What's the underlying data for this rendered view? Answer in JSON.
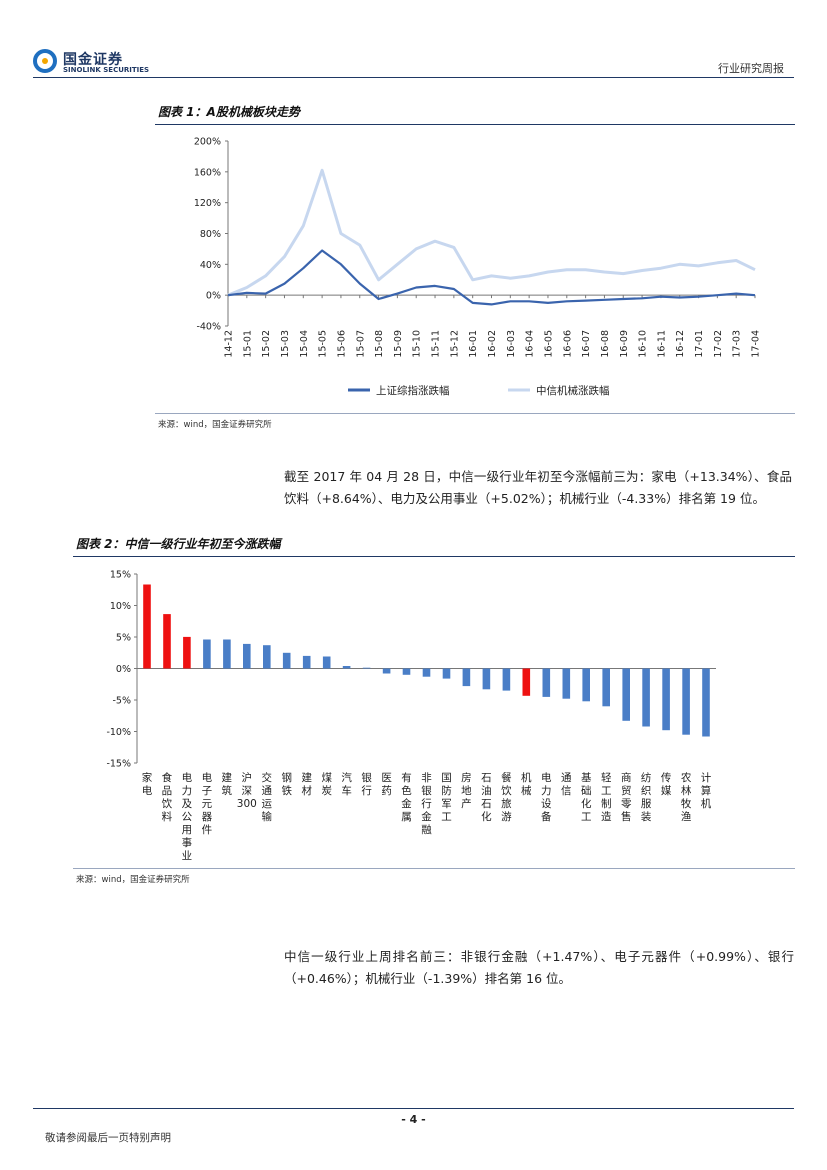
{
  "header": {
    "logo_cn": "国金证券",
    "logo_en": "SINOLINK SECURITIES",
    "report_type": "行业研究周报"
  },
  "colors": {
    "series1": "#3a64ad",
    "series2": "#c7d7ef",
    "bar_blue": "#4a7ec7",
    "bar_red": "#ee1111",
    "rule": "#1f3864"
  },
  "figure1": {
    "title": "图表 1：A股机械板块走势",
    "source": "来源：wind，国金证券研究所"
  },
  "figure2": {
    "title": "图表 2：中信一级行业年初至今涨跌幅",
    "source": "来源：wind，国金证券研究所"
  },
  "paragraph1": "截至 2017 年 04 月 28 日，中信一级行业年初至今涨幅前三为：家电（+13.34%）、食品饮料（+8.64%）、电力及公用事业（+5.02%）；机械行业（-4.33%）排名第 19 位。",
  "paragraph2": "中信一级行业上周排名前三：非银行金融（+1.47%）、电子元器件（+0.99%）、银行（+0.46%）；机械行业（-1.39%）排名第 16 位。",
  "footer": {
    "page": "- 4 -",
    "note": "敬请参阅最后一页特别声明"
  },
  "chart_data": [
    {
      "type": "line",
      "title": "图表 1：A股机械板块走势",
      "x": [
        "14-12",
        "15-01",
        "15-02",
        "15-03",
        "15-04",
        "15-05",
        "15-06",
        "15-07",
        "15-08",
        "15-09",
        "15-10",
        "15-11",
        "15-12",
        "16-01",
        "16-02",
        "16-03",
        "16-04",
        "16-05",
        "16-06",
        "16-07",
        "16-08",
        "16-09",
        "16-10",
        "16-11",
        "16-12",
        "17-01",
        "17-02",
        "17-03",
        "17-04"
      ],
      "yticks": [
        "200%",
        "160%",
        "120%",
        "80%",
        "40%",
        "0%",
        "-40%"
      ],
      "ylim": [
        -40,
        200
      ],
      "series": [
        {
          "name": "上证综指涨跌幅",
          "values": [
            0,
            3,
            2,
            15,
            35,
            58,
            40,
            15,
            -5,
            2,
            10,
            12,
            8,
            -10,
            -12,
            -8,
            -8,
            -10,
            -8,
            -7,
            -6,
            -5,
            -4,
            -2,
            -3,
            -2,
            0,
            2,
            0
          ]
        },
        {
          "name": "中信机械涨跌幅",
          "values": [
            0,
            10,
            25,
            50,
            90,
            162,
            80,
            65,
            20,
            40,
            60,
            70,
            62,
            20,
            25,
            22,
            25,
            30,
            33,
            33,
            30,
            28,
            32,
            35,
            40,
            38,
            42,
            45,
            33
          ]
        }
      ],
      "legend": "bottom"
    },
    {
      "type": "bar",
      "title": "图表 2：中信一级行业年初至今涨跌幅",
      "categories": [
        "家电",
        "食品饮料",
        "电力及公用事业",
        "电子元器件",
        "建筑",
        "沪深300",
        "交通运输",
        "钢铁",
        "建材",
        "煤炭",
        "汽车",
        "银行",
        "医药",
        "有色金属",
        "非银行金融",
        "国防军工",
        "房地产",
        "石油石化",
        "餐饮旅游",
        "机械",
        "电力设备",
        "通信",
        "基础化工",
        "轻工制造",
        "商贸零售",
        "纺织服装",
        "传媒",
        "农林牧渔",
        "计算机"
      ],
      "values": [
        13.34,
        8.64,
        5.02,
        4.6,
        4.6,
        3.9,
        3.7,
        2.5,
        2.0,
        1.9,
        0.4,
        0.0,
        -0.8,
        -1.0,
        -1.3,
        -1.6,
        -2.8,
        -3.3,
        -3.5,
        -4.33,
        -4.5,
        -4.8,
        -5.2,
        -6.0,
        -8.3,
        -9.2,
        -9.8,
        -10.5,
        -10.8
      ],
      "highlight": [
        "家电",
        "食品饮料",
        "电力及公用事业",
        "机械"
      ],
      "yticks": [
        "15%",
        "10%",
        "5%",
        "0%",
        "-5%",
        "-10%",
        "-15%"
      ],
      "ylim": [
        -15,
        15
      ]
    }
  ]
}
